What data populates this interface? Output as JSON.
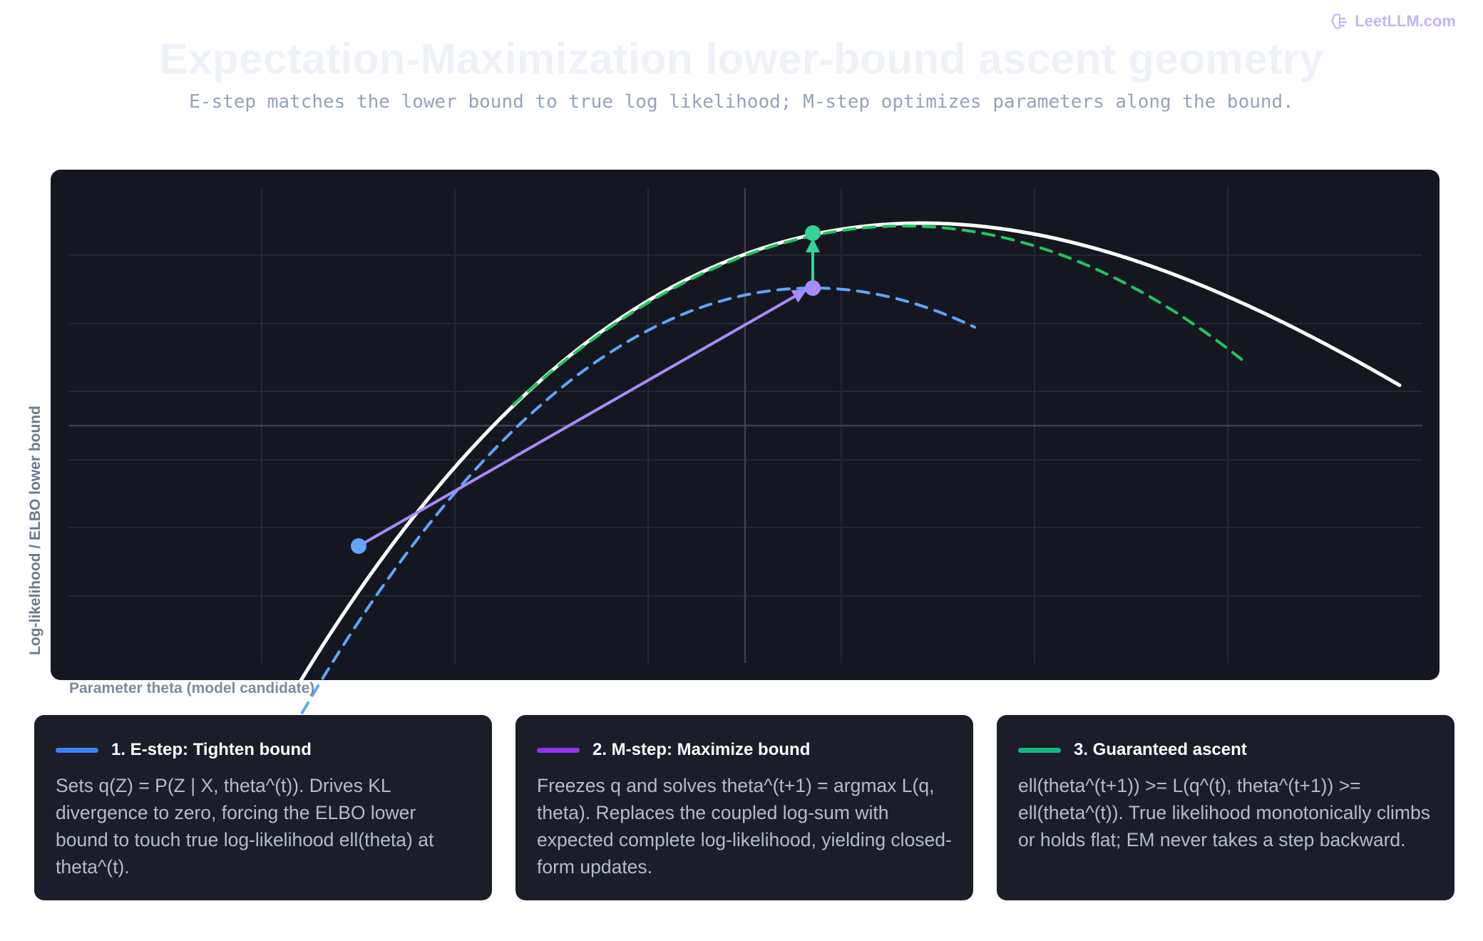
{
  "brand": {
    "name": "LeetLLM.com",
    "icon": "brain-logo-icon",
    "color": "#c4b5fd"
  },
  "header": {
    "title": "Expectation-Maximization lower-bound ascent geometry",
    "subtitle": "E-step matches the lower bound to true log likelihood; M-step optimizes parameters along the bound."
  },
  "chart": {
    "ylabel": "Log-likelihood / ELBO lower bound",
    "xlabel": "Parameter theta (model candidate)",
    "background": "#151720",
    "grid": true,
    "colors": {
      "true_likelihood": "#ffffff",
      "bound_t": "#60a5fa",
      "bound_t1": "#22c55e",
      "m_step_arrow": "#a78bfa",
      "ascent_arrow": "#34d399"
    },
    "points": {
      "theta_t": {
        "name": "theta^(t)",
        "color": "#60a5fa"
      },
      "theta_t1_bound": {
        "name": "L(q^(t), theta^(t+1))",
        "color": "#a78bfa"
      },
      "theta_t1_true": {
        "name": "ell(theta^(t+1))",
        "color": "#34d399"
      }
    }
  },
  "cards": [
    {
      "title": "1. E-step: Tighten bound",
      "color": "#3b82f6",
      "body": "Sets q(Z) = P(Z | X, theta^(t)). Drives KL divergence to zero, forcing the ELBO lower bound to touch true log-likelihood ell(theta) at theta^(t)."
    },
    {
      "title": "2. M-step: Maximize bound",
      "color": "#9333ea",
      "body": "Freezes q and solves theta^(t+1) = argmax L(q, theta). Replaces the coupled log-sum with expected complete log-likelihood, yielding closed-form updates."
    },
    {
      "title": "3. Guaranteed ascent",
      "color": "#10b981",
      "body": "ell(theta^(t+1)) >= L(q^(t), theta^(t+1)) >= ell(theta^(t)). True likelihood monotonically climbs or holds flat; EM never takes a step backward."
    }
  ]
}
